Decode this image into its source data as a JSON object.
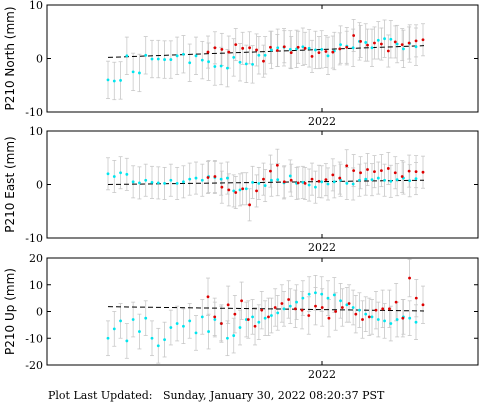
{
  "footer": {
    "label": "Plot Last Updated:",
    "timestamp": "Sunday, January 30, 2022 08:20:37 PST"
  },
  "colors": {
    "early": "#00e5ee",
    "recent": "#dd0000",
    "errorbar": "#c8c8c8",
    "trend": "#000000"
  },
  "chart_data": [
    {
      "type": "scatter",
      "ylabel": "P210 North (mm)",
      "ylim": [
        -10,
        10
      ],
      "yticks": [
        -10,
        0,
        10
      ],
      "xtick_label": "2022",
      "trend": {
        "start": 0.2,
        "end": 2.4
      },
      "series": [
        {
          "color_key": "early",
          "values": [
            -4.0,
            -4.2,
            -4.1,
            0.5,
            -2.5,
            -2.7,
            0.6,
            -0.1,
            -0.1,
            -0.2,
            -0.2,
            0.5,
            0.8,
            -0.8,
            0.5,
            -0.3,
            -0.6,
            -1.5,
            -1.4,
            -1.8,
            0.2,
            -0.7,
            -1.0,
            -1.1,
            0.6,
            0.6,
            1.6,
            2.0,
            2.1,
            1.7,
            1.8,
            2.2,
            1.9,
            1.6,
            1.7,
            0.5,
            1.4,
            2.6,
            2.3,
            2.0,
            3.2,
            3.0,
            2.0,
            3.4,
            3.7,
            3.6,
            2.7,
            1.8,
            2.8,
            2.2
          ],
          "sigma": 3.5
        },
        {
          "color_key": "recent",
          "values": [
            1.2,
            2.0,
            1.7,
            1.2,
            2.6,
            1.9,
            2.0,
            1.6,
            -0.5,
            2.1,
            1.5,
            2.2,
            1.1,
            2.1,
            1.9,
            0.4,
            1.1,
            1.3,
            1.2,
            1.8,
            2.1,
            4.3,
            3.2,
            2.5,
            2.9,
            2.7,
            1.4,
            3.1,
            2.6,
            2.9,
            3.3,
            3.5
          ],
          "sigma": 3.0
        }
      ]
    },
    {
      "type": "scatter",
      "ylabel": "P210 East (mm)",
      "ylim": [
        -10,
        10
      ],
      "yticks": [
        -10,
        0,
        10
      ],
      "xtick_label": "2022",
      "trend": {
        "start": 0.0,
        "end": 0.8
      },
      "series": [
        {
          "color_key": "early",
          "values": [
            2.0,
            1.5,
            2.2,
            1.9,
            0.5,
            0.3,
            0.8,
            0.4,
            0.3,
            0.2,
            0.8,
            0.2,
            0.5,
            1.0,
            1.2,
            0.8,
            1.5,
            1.3,
            1.0,
            1.2,
            -1.2,
            -1.0,
            -0.8,
            0.4,
            0.2,
            -0.2,
            0.8,
            0.9,
            0.3,
            1.6,
            0.2,
            0.4,
            -0.1,
            -0.5,
            0.5,
            0.1,
            0.5,
            0.8,
            0.2,
            0.1,
            0.8,
            1.0,
            0.9,
            1.2,
            0.8,
            0.6,
            0.9,
            1.2,
            0.7,
            1.1
          ],
          "sigma": 3.0
        },
        {
          "color_key": "recent",
          "values": [
            1.3,
            1.5,
            -0.5,
            -1.0,
            -1.5,
            -0.8,
            -3.8,
            -1.2,
            1.0,
            2.5,
            3.6,
            0.5,
            0.8,
            0.3,
            0.2,
            1.0,
            0.6,
            0.9,
            1.8,
            1.2,
            3.5,
            2.6,
            2.2,
            2.8,
            2.4,
            2.6,
            3.0,
            2.2,
            1.5,
            2.5,
            2.4,
            2.3
          ],
          "sigma": 3.0
        }
      ]
    },
    {
      "type": "scatter",
      "ylabel": "P210 Up (mm)",
      "ylim": [
        -20,
        20
      ],
      "yticks": [
        -20,
        -10,
        0,
        10,
        20
      ],
      "xtick_label": "2022",
      "trend": {
        "start": 1.8,
        "end": 0.2
      },
      "series": [
        {
          "color_key": "early",
          "values": [
            -10.0,
            -6.5,
            -3.5,
            -11.0,
            -3.0,
            -7.5,
            -2.5,
            -10.0,
            -12.8,
            -10.5,
            -6.0,
            -4.5,
            -5.5,
            -3.5,
            -8.0,
            -2.0,
            -7.5,
            -3.0,
            -4.5,
            -10.0,
            -9.0,
            -6.0,
            -3.0,
            -2.0,
            -4.0,
            -2.5,
            -1.5,
            -0.5,
            1.0,
            2.0,
            3.5,
            5.0,
            6.5,
            7.0,
            6.5,
            5.0,
            6.2,
            4.0,
            2.5,
            1.5,
            0.5,
            -1.0,
            -2.0,
            -3.0,
            -3.5,
            -4.5,
            -3.0,
            -2.0,
            -2.5,
            -4.0
          ],
          "sigma": 6.5
        },
        {
          "color_key": "recent",
          "values": [
            5.5,
            -2.0,
            -4.5,
            2.5,
            -1.0,
            4.0,
            -3.0,
            -5.5,
            0.5,
            -2.0,
            1.5,
            3.0,
            4.5,
            1.0,
            0.5,
            -1.5,
            2.0,
            1.5,
            -2.5,
            0.0,
            1.5,
            3.0,
            -1.0,
            -3.0,
            -2.0,
            0.5,
            1.0,
            1.0,
            3.5,
            -2.5,
            12.5,
            5.0,
            2.5
          ],
          "sigma": 7.0
        }
      ]
    }
  ]
}
